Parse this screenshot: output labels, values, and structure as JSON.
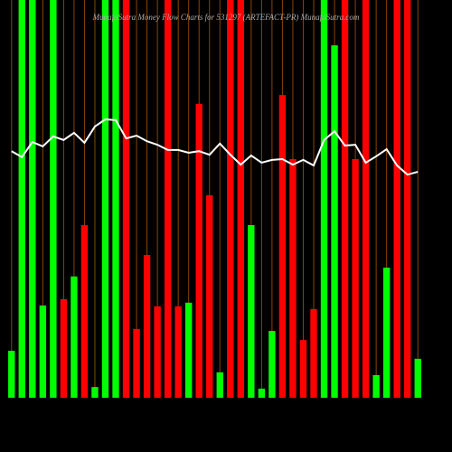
{
  "chart_data": {
    "type": "bar",
    "title": "MunafaSutra  Money Flow  Charts for 531297        (ARTEFACT-PR) MunafaSutra.com",
    "categories": [
      null,
      null,
      null,
      null,
      null,
      null,
      null,
      null,
      null,
      null,
      null,
      null,
      null,
      null,
      null,
      null,
      null,
      null,
      null,
      null,
      null,
      null,
      null,
      null,
      null,
      null,
      null,
      null,
      null,
      null,
      null,
      null,
      null,
      null,
      null,
      null,
      null,
      null,
      null,
      null
    ],
    "values": [
      11.8,
      100,
      100,
      23.2,
      100,
      24.8,
      30.5,
      43.4,
      2.7,
      100,
      100,
      100,
      17.3,
      35.9,
      23.0,
      100,
      23.0,
      23.9,
      73.9,
      50.9,
      6.4,
      100,
      100,
      43.4,
      2.3,
      16.8,
      76.1,
      60.0,
      14.5,
      22.3,
      100,
      88.6,
      100,
      60.0,
      100,
      5.7,
      32.7,
      100,
      100,
      9.8
    ],
    "colors": [
      "#00ff00",
      "#00ff00",
      "#00ff00",
      "#00ff00",
      "#00ff00",
      "#ff0000",
      "#00ff00",
      "#ff0000",
      "#00ff00",
      "#00ff00",
      "#00ff00",
      "#ff0000",
      "#ff0000",
      "#ff0000",
      "#ff0000",
      "#ff0000",
      "#ff0000",
      "#00ff00",
      "#ff0000",
      "#ff0000",
      "#00ff00",
      "#ff0000",
      "#ff0000",
      "#00ff00",
      "#00ff00",
      "#00ff00",
      "#ff0000",
      "#ff0000",
      "#ff0000",
      "#ff0000",
      "#00ff00",
      "#00ff00",
      "#ff0000",
      "#ff0000",
      "#ff0000",
      "#00ff00",
      "#00ff00",
      "#ff0000",
      "#ff0000",
      "#00ff00"
    ],
    "line": {
      "color": "#ffffff",
      "values": [
        62.0,
        60.5,
        64.3,
        63.2,
        65.7,
        64.8,
        66.6,
        64.1,
        68.2,
        70.0,
        69.8,
        65.2,
        65.9,
        64.5,
        63.6,
        62.3,
        62.3,
        61.6,
        62.0,
        61.1,
        63.9,
        61.1,
        58.6,
        60.9,
        59.1,
        59.8,
        60.0,
        58.6,
        59.8,
        58.4,
        64.8,
        67.0,
        63.4,
        63.6,
        59.1,
        60.7,
        62.5,
        58.4,
        56.1,
        56.8
      ]
    },
    "grid_color": "#8b4500",
    "ylim": [
      0,
      100
    ]
  }
}
